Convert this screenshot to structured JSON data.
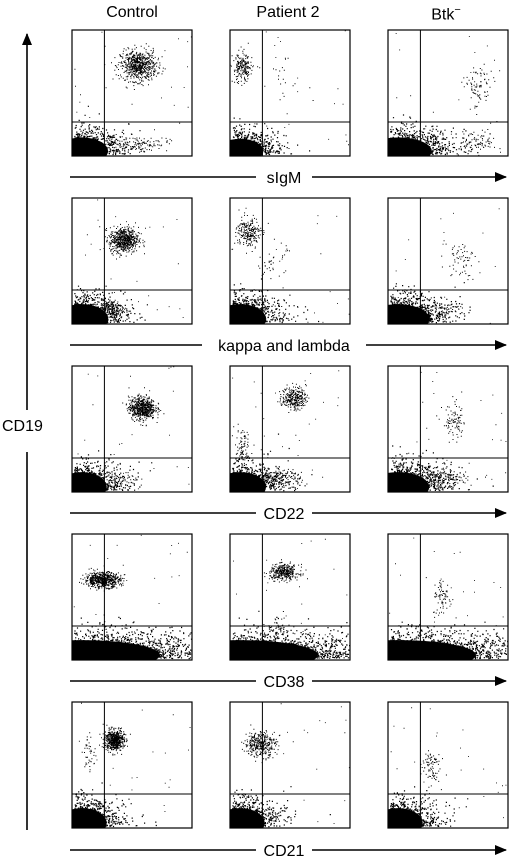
{
  "columns": [
    {
      "label": "Control"
    },
    {
      "label": "Patient 2"
    },
    {
      "label": "Btk",
      "superscript": "−"
    }
  ],
  "y_axis_label": "CD19",
  "rows": [
    {
      "x_axis_label": "sIgM",
      "panels": [
        {
          "label": "Control",
          "ll": {
            "n": 700,
            "sx": 20,
            "sy": 10
          },
          "ul": null,
          "ur": {
            "n": 650,
            "mx": 0.55,
            "my": 0.72,
            "sx": 0.15,
            "sy": 0.12
          },
          "lr": {
            "n": 120,
            "mx": 0.55,
            "my": 0.1,
            "sx": 0.25,
            "sy": 0.06
          }
        },
        {
          "label": "Patient 2",
          "ll": {
            "n": 650,
            "sx": 18,
            "sy": 9
          },
          "ul": {
            "n": 200,
            "mx": 0.1,
            "my": 0.7,
            "sx": 0.08,
            "sy": 0.12
          },
          "ur": {
            "n": 20,
            "mx": 0.45,
            "my": 0.6,
            "sx": 0.2,
            "sy": 0.15
          },
          "lr": {
            "n": 10,
            "mx": 0.3,
            "my": 0.1,
            "sx": 0.2,
            "sy": 0.05
          }
        },
        {
          "label": "Btk−",
          "ll": {
            "n": 800,
            "sx": 26,
            "sy": 10
          },
          "ul": null,
          "ur": {
            "n": 80,
            "mx": 0.75,
            "my": 0.55,
            "sx": 0.12,
            "sy": 0.18
          },
          "lr": {
            "n": 70,
            "mx": 0.75,
            "my": 0.12,
            "sx": 0.15,
            "sy": 0.08
          }
        }
      ]
    },
    {
      "x_axis_label": "kappa and lambda",
      "panels": [
        {
          "label": "Control",
          "ll": {
            "n": 700,
            "sx": 20,
            "sy": 11
          },
          "ul": null,
          "ur": {
            "n": 600,
            "mx": 0.43,
            "my": 0.67,
            "sx": 0.12,
            "sy": 0.1
          },
          "lr": {
            "n": 140,
            "mx": 0.33,
            "my": 0.12,
            "sx": 0.1,
            "sy": 0.07
          }
        },
        {
          "label": "Patient 2",
          "ll": {
            "n": 650,
            "sx": 20,
            "sy": 11
          },
          "ul": {
            "n": 220,
            "mx": 0.15,
            "my": 0.73,
            "sx": 0.1,
            "sy": 0.12
          },
          "ur": {
            "n": 40,
            "mx": 0.35,
            "my": 0.5,
            "sx": 0.12,
            "sy": 0.15
          },
          "lr": {
            "n": 40,
            "mx": 0.3,
            "my": 0.12,
            "sx": 0.15,
            "sy": 0.06
          }
        },
        {
          "label": "Btk−",
          "ll": {
            "n": 800,
            "sx": 24,
            "sy": 11
          },
          "ul": null,
          "ur": {
            "n": 60,
            "mx": 0.6,
            "my": 0.52,
            "sx": 0.13,
            "sy": 0.15
          },
          "lr": {
            "n": 40,
            "mx": 0.45,
            "my": 0.12,
            "sx": 0.15,
            "sy": 0.06
          }
        }
      ]
    },
    {
      "x_axis_label": "CD22",
      "panels": [
        {
          "label": "Control",
          "ll": {
            "n": 650,
            "sx": 19,
            "sy": 11
          },
          "ul": null,
          "ur": {
            "n": 600,
            "mx": 0.58,
            "my": 0.67,
            "sx": 0.11,
            "sy": 0.09
          },
          "lr": {
            "n": 60,
            "mx": 0.4,
            "my": 0.1,
            "sx": 0.15,
            "sy": 0.06
          }
        },
        {
          "label": "Patient 2",
          "ll": {
            "n": 650,
            "sx": 20,
            "sy": 11
          },
          "ul": {
            "n": 80,
            "mx": 0.1,
            "my": 0.35,
            "sx": 0.07,
            "sy": 0.15
          },
          "ur": {
            "n": 280,
            "mx": 0.53,
            "my": 0.75,
            "sx": 0.1,
            "sy": 0.09
          },
          "lr": {
            "n": 180,
            "mx": 0.4,
            "my": 0.12,
            "sx": 0.2,
            "sy": 0.06
          }
        },
        {
          "label": "Btk−",
          "ll": {
            "n": 800,
            "sx": 24,
            "sy": 11
          },
          "ul": null,
          "ur": {
            "n": 90,
            "mx": 0.55,
            "my": 0.55,
            "sx": 0.1,
            "sy": 0.15
          },
          "lr": {
            "n": 140,
            "mx": 0.45,
            "my": 0.12,
            "sx": 0.2,
            "sy": 0.06
          }
        }
      ]
    },
    {
      "x_axis_label": "CD38",
      "panels": [
        {
          "label": "Control",
          "ll": {
            "n": 1200,
            "sx": 60,
            "sy": 11
          },
          "ul": {
            "n": 600,
            "mx": 0.25,
            "my": 0.64,
            "sx": 0.15,
            "sy": 0.06
          },
          "ur": null,
          "lr": null
        },
        {
          "label": "Patient 2",
          "ll": {
            "n": 1200,
            "sx": 60,
            "sy": 11
          },
          "ul": null,
          "ur": {
            "n": 350,
            "mx": 0.45,
            "my": 0.7,
            "sx": 0.12,
            "sy": 0.06
          },
          "lr": {
            "n": 40,
            "mx": 0.4,
            "my": 0.25,
            "sx": 0.1,
            "sy": 0.1
          }
        },
        {
          "label": "Btk−",
          "ll": {
            "n": 1200,
            "sx": 60,
            "sy": 11
          },
          "ul": null,
          "ur": {
            "n": 70,
            "mx": 0.45,
            "my": 0.5,
            "sx": 0.08,
            "sy": 0.15
          },
          "lr": null
        }
      ]
    },
    {
      "x_axis_label": "CD21",
      "panels": [
        {
          "label": "Control",
          "ll": {
            "n": 650,
            "sx": 19,
            "sy": 11
          },
          "ul": {
            "n": 40,
            "mx": 0.14,
            "my": 0.6,
            "sx": 0.06,
            "sy": 0.15
          },
          "ur": {
            "n": 550,
            "mx": 0.35,
            "my": 0.7,
            "sx": 0.08,
            "sy": 0.08
          },
          "lr": null
        },
        {
          "label": "Patient 2",
          "ll": {
            "n": 650,
            "sx": 19,
            "sy": 11
          },
          "ul": {
            "n": 350,
            "mx": 0.25,
            "my": 0.67,
            "sx": 0.13,
            "sy": 0.1
          },
          "ur": null,
          "lr": {
            "n": 20,
            "mx": 0.3,
            "my": 0.1,
            "sx": 0.1,
            "sy": 0.05
          }
        },
        {
          "label": "Btk−",
          "ll": {
            "n": 650,
            "sx": 19,
            "sy": 11
          },
          "ul": null,
          "ur": {
            "n": 80,
            "mx": 0.35,
            "my": 0.5,
            "sx": 0.08,
            "sy": 0.15
          },
          "lr": null
        }
      ]
    }
  ]
}
